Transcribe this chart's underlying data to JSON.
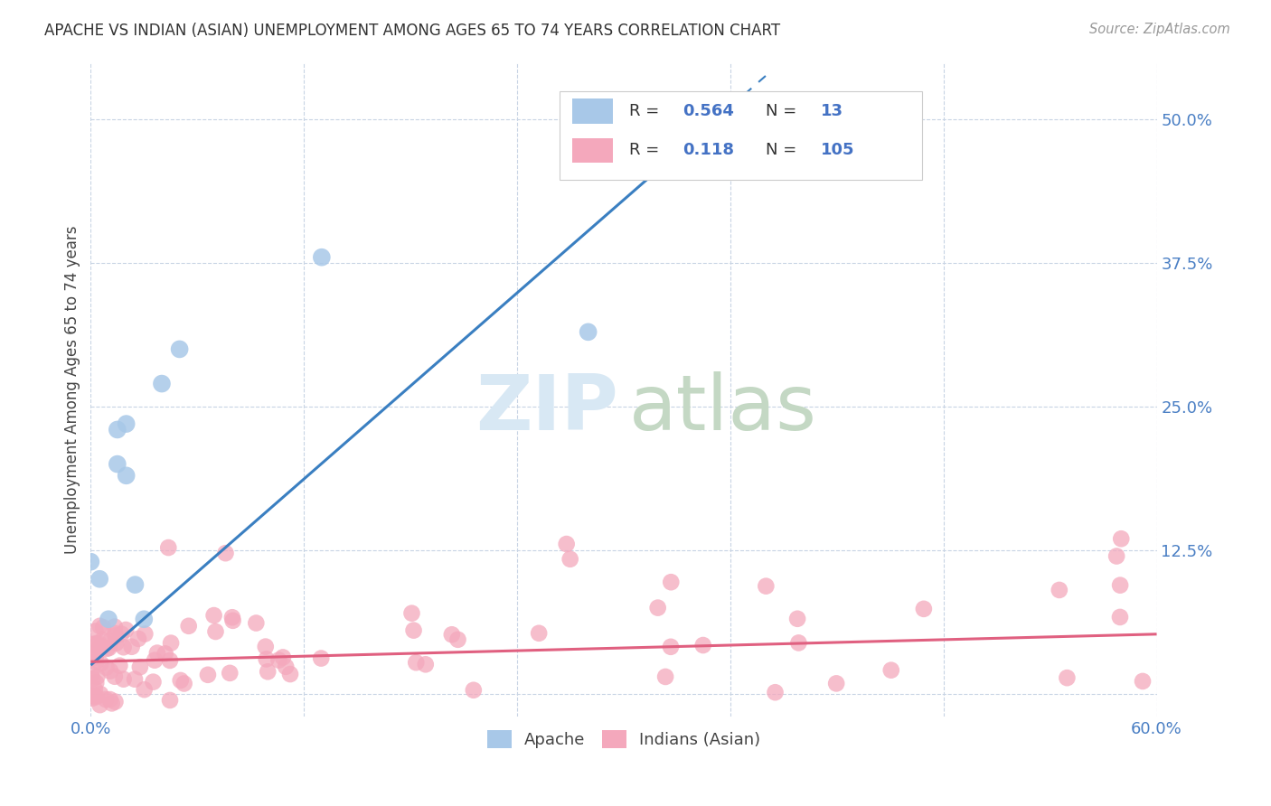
{
  "title": "APACHE VS INDIAN (ASIAN) UNEMPLOYMENT AMONG AGES 65 TO 74 YEARS CORRELATION CHART",
  "source": "Source: ZipAtlas.com",
  "ylabel": "Unemployment Among Ages 65 to 74 years",
  "xlim": [
    0.0,
    0.6
  ],
  "ylim": [
    -0.02,
    0.55
  ],
  "apache_R": 0.564,
  "apache_N": 13,
  "indian_R": 0.118,
  "indian_N": 105,
  "apache_color": "#a8c8e8",
  "indian_color": "#f4a8bc",
  "apache_line_color": "#3a7fc1",
  "indian_line_color": "#e06080",
  "tick_color": "#4a7fc4",
  "grid_color": "#c8d4e4",
  "background_color": "#ffffff",
  "apache_x": [
    0.005,
    0.01,
    0.015,
    0.015,
    0.02,
    0.02,
    0.025,
    0.03,
    0.04,
    0.05,
    0.13,
    0.28,
    0.0
  ],
  "apache_y": [
    0.1,
    0.065,
    0.2,
    0.23,
    0.235,
    0.19,
    0.095,
    0.065,
    0.27,
    0.3,
    0.38,
    0.315,
    0.115
  ],
  "apache_line_x0": 0.0,
  "apache_line_y0": 0.025,
  "apache_line_slope": 1.35,
  "apache_line_xmax_solid": 0.32,
  "indian_line_x0": 0.0,
  "indian_line_y0": 0.028,
  "indian_line_slope": 0.04,
  "indian_line_xmax": 0.6
}
